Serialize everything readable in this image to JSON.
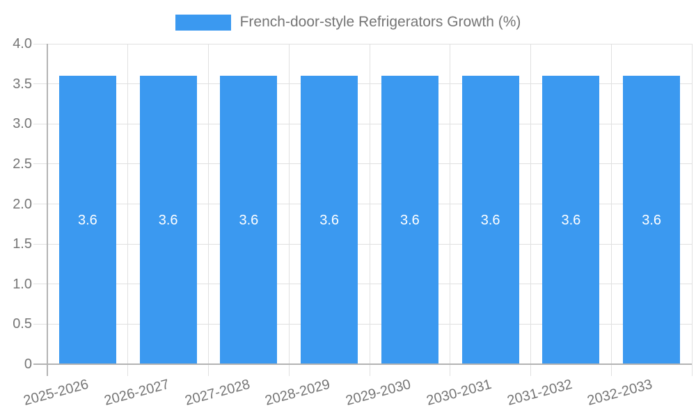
{
  "chart_data": {
    "type": "bar",
    "title": "French-door-style Refrigerators Growth (%)",
    "legend": {
      "label": "French-door-style Refrigerators Growth (%)",
      "position": "top"
    },
    "categories": [
      "2025-2026",
      "2026-2027",
      "2027-2028",
      "2028-2029",
      "2029-2030",
      "2030-2031",
      "2031-2032",
      "2032-2033"
    ],
    "series": [
      {
        "name": "French-door-style Refrigerators Growth (%)",
        "color": "#3b99f0",
        "values": [
          3.6,
          3.6,
          3.6,
          3.6,
          3.6,
          3.6,
          3.6,
          3.6
        ],
        "value_labels": [
          "3.6",
          "3.6",
          "3.6",
          "3.6",
          "3.6",
          "3.6",
          "3.6",
          "3.6"
        ]
      }
    ],
    "xlabel": "",
    "ylabel": "",
    "ylim": [
      0,
      4
    ],
    "yticks": [
      {
        "value": 0,
        "label": "0"
      },
      {
        "value": 0.5,
        "label": "0.5"
      },
      {
        "value": 1,
        "label": "1.0"
      },
      {
        "value": 1.5,
        "label": "1.5"
      },
      {
        "value": 2,
        "label": "2.0"
      },
      {
        "value": 2.5,
        "label": "2.5"
      },
      {
        "value": 3,
        "label": "3.0"
      },
      {
        "value": 3.5,
        "label": "3.5"
      },
      {
        "value": 4,
        "label": "4.0"
      }
    ],
    "grid": true,
    "colors": {
      "bar": "#3b99f0",
      "grid": "#e0e0e0",
      "axis": "#b3b3b3",
      "text": "#757575",
      "value_label": "#ffffff",
      "background": "#ffffff"
    }
  }
}
